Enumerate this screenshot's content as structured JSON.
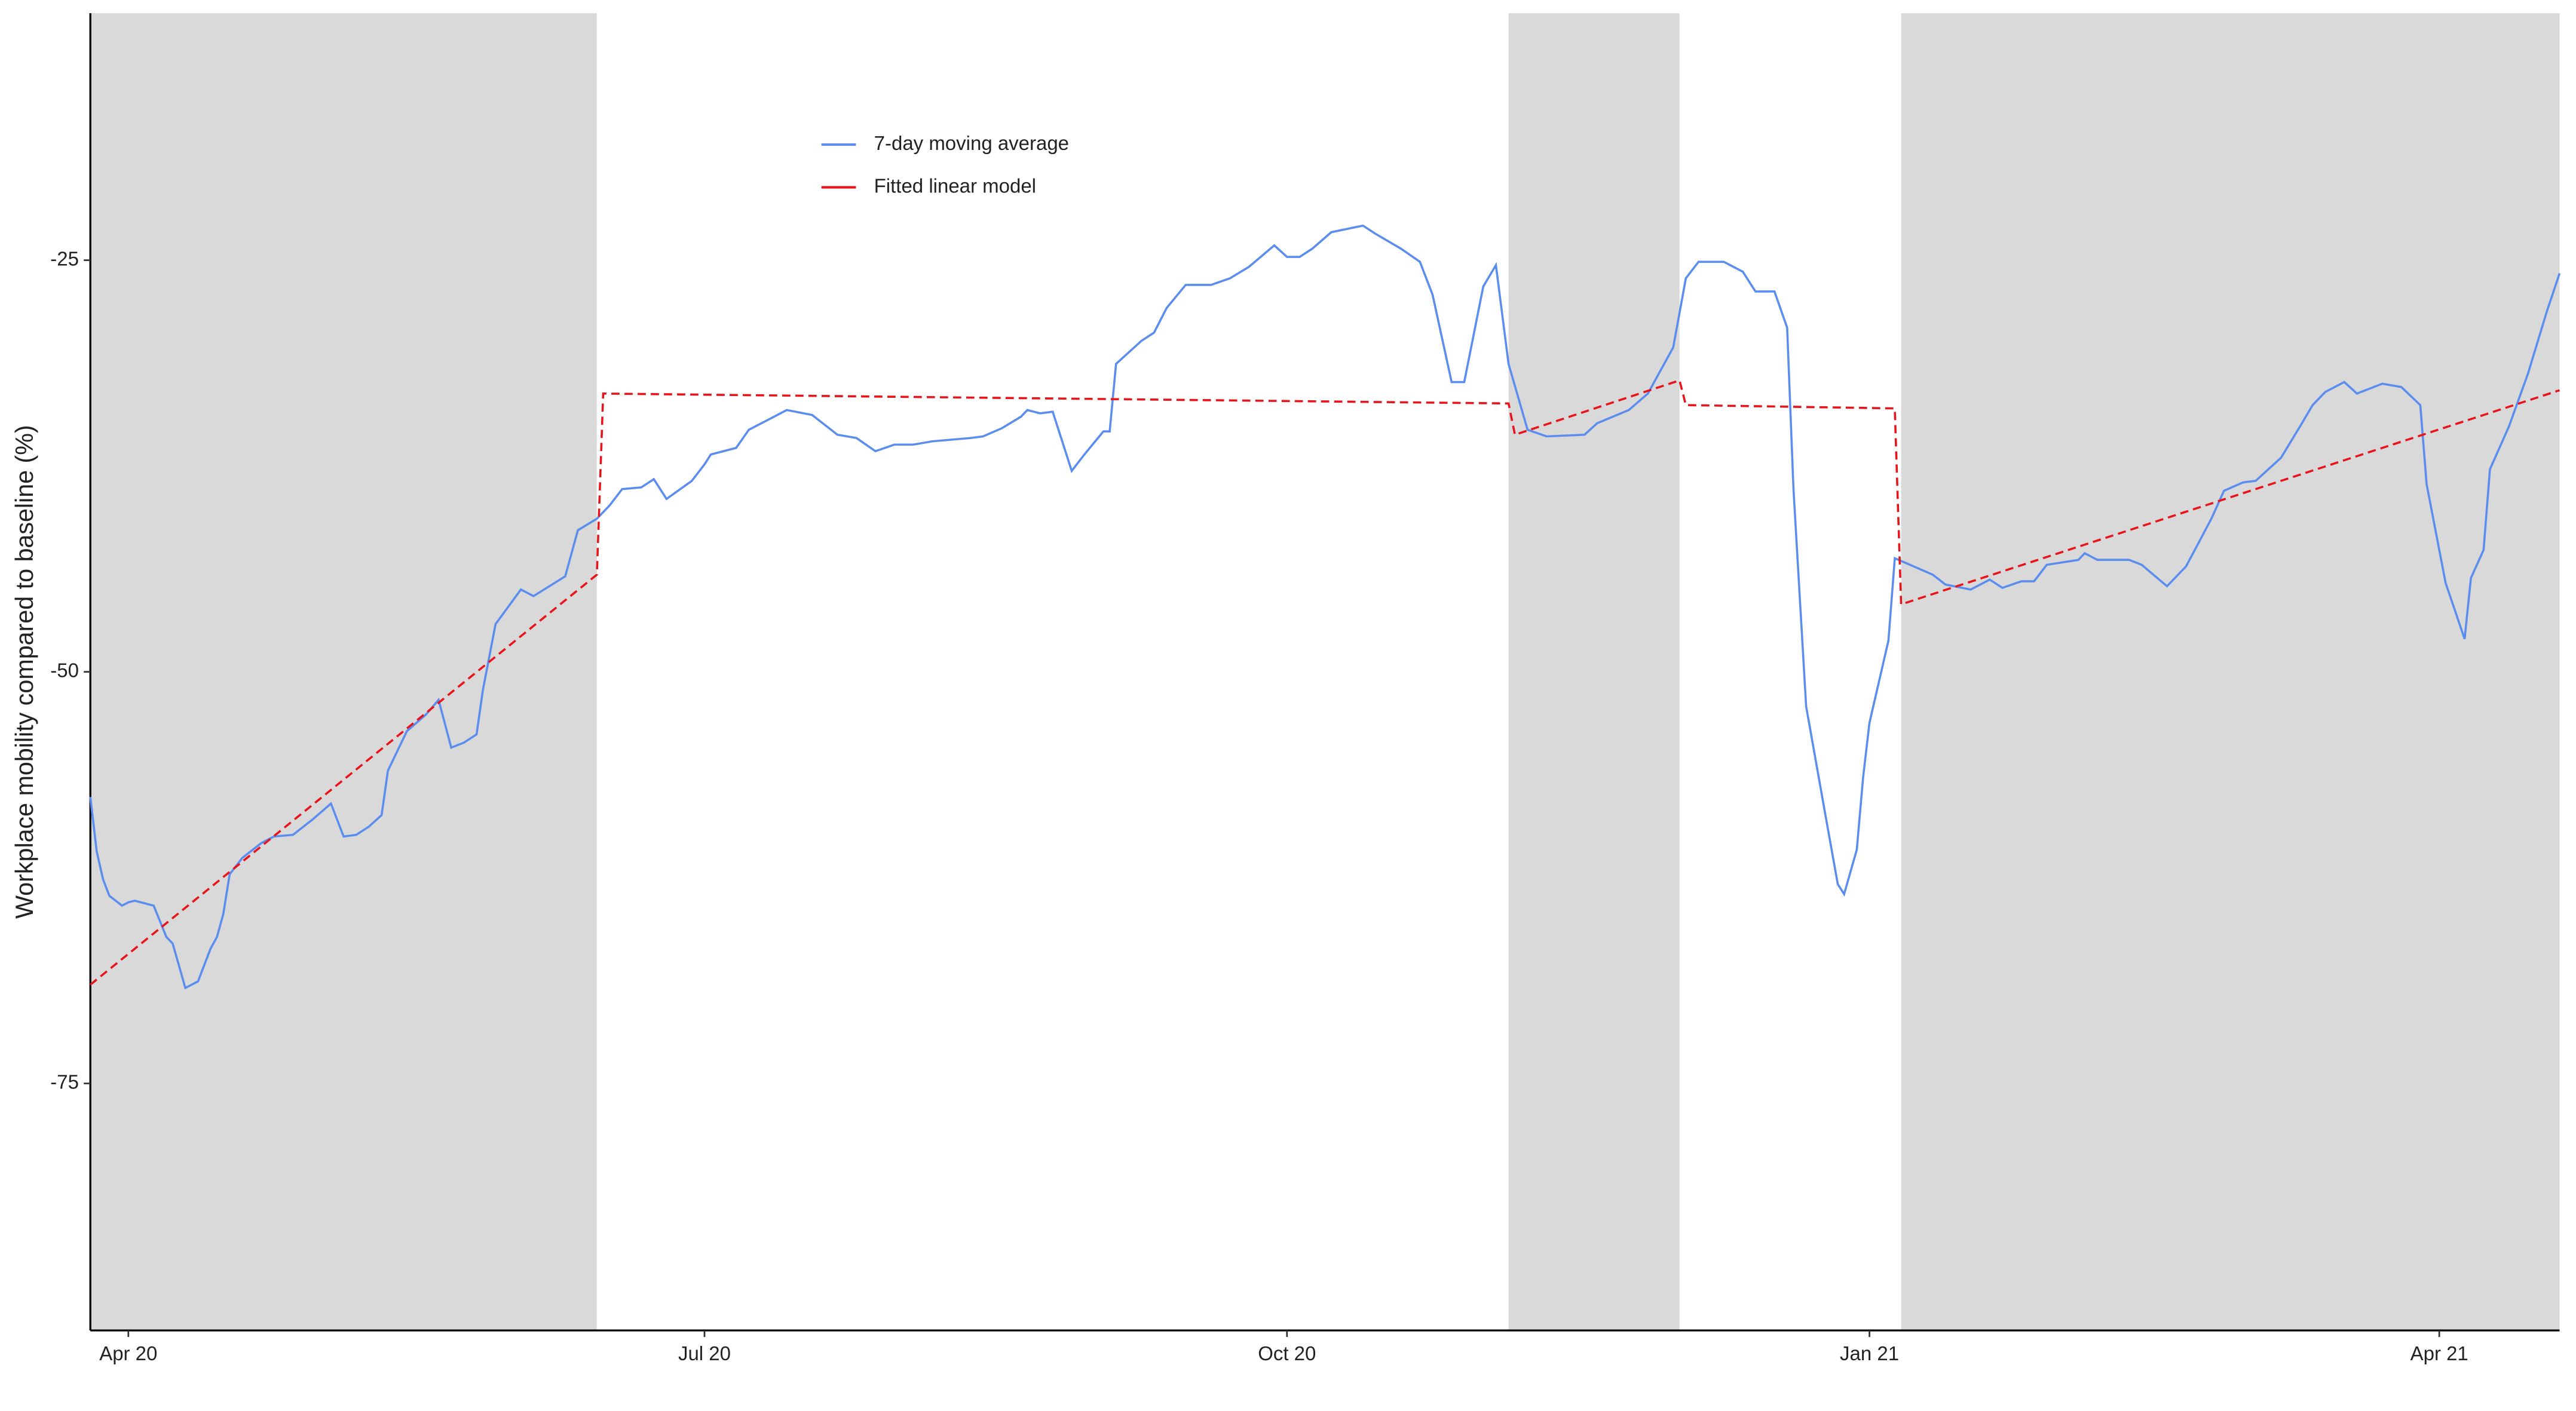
{
  "chart_data": {
    "type": "line",
    "y_label": "Workplace mobility compared to baseline (%)",
    "xlim": [
      "2020-03-26",
      "2021-04-20"
    ],
    "xticks": [
      {
        "value": "2020-04-01",
        "label": "Apr 20"
      },
      {
        "value": "2020-07-01",
        "label": "Jul 20"
      },
      {
        "value": "2020-10-01",
        "label": "Oct 20"
      },
      {
        "value": "2021-01-01",
        "label": "Jan 21"
      },
      {
        "value": "2021-04-01",
        "label": "Apr 21"
      }
    ],
    "ylim": [
      -90,
      -10
    ],
    "yticks": [
      -75,
      -50,
      -25
    ],
    "grid": false,
    "legend": "top",
    "shaded_periods": [
      [
        "2020-03-26",
        "2020-06-14"
      ],
      [
        "2020-11-05",
        "2020-12-02"
      ],
      [
        "2021-01-06",
        "2021-04-20"
      ]
    ],
    "shade_color": "#d9d9d9",
    "series": [
      {
        "name": "7-day moving average",
        "color": "#5b8def",
        "dashed": false,
        "x": [
          "2020-03-26",
          "2020-03-27",
          "2020-03-28",
          "2020-03-29",
          "2020-03-31",
          "2020-04-01",
          "2020-04-02",
          "2020-04-05",
          "2020-04-07",
          "2020-04-08",
          "2020-04-10",
          "2020-04-12",
          "2020-04-14",
          "2020-04-15",
          "2020-04-16",
          "2020-04-17",
          "2020-04-19",
          "2020-04-22",
          "2020-04-24",
          "2020-04-27",
          "2020-04-30",
          "2020-05-03",
          "2020-05-05",
          "2020-05-07",
          "2020-05-09",
          "2020-05-11",
          "2020-05-12",
          "2020-05-15",
          "2020-05-18",
          "2020-05-20",
          "2020-05-22",
          "2020-05-24",
          "2020-05-26",
          "2020-05-27",
          "2020-05-29",
          "2020-06-02",
          "2020-06-04",
          "2020-06-09",
          "2020-06-11",
          "2020-06-14",
          "2020-06-16",
          "2020-06-18",
          "2020-06-21",
          "2020-06-23",
          "2020-06-25",
          "2020-06-29",
          "2020-07-01",
          "2020-07-02",
          "2020-07-06",
          "2020-07-08",
          "2020-07-12",
          "2020-07-14",
          "2020-07-18",
          "2020-07-22",
          "2020-07-25",
          "2020-07-28",
          "2020-07-31",
          "2020-08-03",
          "2020-08-06",
          "2020-08-12",
          "2020-08-14",
          "2020-08-17",
          "2020-08-20",
          "2020-08-21",
          "2020-08-23",
          "2020-08-25",
          "2020-08-28",
          "2020-08-30",
          "2020-09-02",
          "2020-09-03",
          "2020-09-04",
          "2020-09-08",
          "2020-09-10",
          "2020-09-12",
          "2020-09-15",
          "2020-09-19",
          "2020-09-22",
          "2020-09-25",
          "2020-09-29",
          "2020-10-01",
          "2020-10-03",
          "2020-10-05",
          "2020-10-08",
          "2020-10-13",
          "2020-10-15",
          "2020-10-19",
          "2020-10-22",
          "2020-10-24",
          "2020-10-27",
          "2020-10-29",
          "2020-11-01",
          "2020-11-03",
          "2020-11-05",
          "2020-11-08",
          "2020-11-11",
          "2020-11-17",
          "2020-11-19",
          "2020-11-24",
          "2020-11-27",
          "2020-12-01",
          "2020-12-03",
          "2020-12-05",
          "2020-12-09",
          "2020-12-12",
          "2020-12-14",
          "2020-12-17",
          "2020-12-19",
          "2020-12-20",
          "2020-12-22",
          "2020-12-25",
          "2020-12-27",
          "2020-12-28",
          "2020-12-30",
          "2020-12-31",
          "2021-01-01",
          "2021-01-04",
          "2021-01-05",
          "2021-01-08",
          "2021-01-11",
          "2021-01-13",
          "2021-01-17",
          "2021-01-20",
          "2021-01-22",
          "2021-01-25",
          "2021-01-27",
          "2021-01-29",
          "2021-02-03",
          "2021-02-04",
          "2021-02-06",
          "2021-02-11",
          "2021-02-13",
          "2021-02-17",
          "2021-02-20",
          "2021-02-24",
          "2021-02-26",
          "2021-03-01",
          "2021-03-03",
          "2021-03-07",
          "2021-03-10",
          "2021-03-12",
          "2021-03-14",
          "2021-03-17",
          "2021-03-19",
          "2021-03-23",
          "2021-03-26",
          "2021-03-29",
          "2021-03-30",
          "2021-04-02",
          "2021-04-05",
          "2021-04-06",
          "2021-04-08",
          "2021-04-09",
          "2021-04-12",
          "2021-04-15",
          "2021-04-18",
          "2021-04-20"
        ],
        "values": [
          -57.6,
          -60.9,
          -62.6,
          -63.6,
          -64.2,
          -64.0,
          -63.9,
          -64.2,
          -66.1,
          -66.5,
          -69.2,
          -68.8,
          -66.8,
          -66.1,
          -64.7,
          -62.3,
          -61.3,
          -60.4,
          -60.0,
          -59.9,
          -59.0,
          -58.0,
          -60.0,
          -59.9,
          -59.4,
          -58.7,
          -56.0,
          -53.6,
          -52.6,
          -51.7,
          -54.6,
          -54.3,
          -53.8,
          -51.1,
          -47.1,
          -45.0,
          -45.4,
          -44.2,
          -41.4,
          -40.7,
          -39.9,
          -38.9,
          -38.8,
          -38.3,
          -39.5,
          -38.4,
          -37.4,
          -36.8,
          -36.4,
          -35.3,
          -34.5,
          -34.1,
          -34.4,
          -35.6,
          -35.8,
          -36.6,
          -36.2,
          -36.2,
          -36.0,
          -35.8,
          -35.7,
          -35.2,
          -34.5,
          -34.1,
          -34.3,
          -34.2,
          -37.8,
          -36.8,
          -35.4,
          -35.4,
          -31.3,
          -29.9,
          -29.4,
          -27.9,
          -26.5,
          -26.5,
          -26.1,
          -25.4,
          -24.1,
          -24.8,
          -24.8,
          -24.3,
          -23.3,
          -22.9,
          -23.4,
          -24.3,
          -25.1,
          -27.1,
          -32.4,
          -32.4,
          -26.6,
          -25.3,
          -31.3,
          -35.3,
          -35.7,
          -35.6,
          -34.9,
          -34.1,
          -33.1,
          -30.3,
          -26.1,
          -25.1,
          -25.1,
          -25.7,
          -26.9,
          -26.9,
          -29.1,
          -38.9,
          -52.1,
          -58.6,
          -62.9,
          -63.5,
          -60.8,
          -56.4,
          -53.1,
          -48.1,
          -43.1,
          -43.6,
          -44.1,
          -44.7,
          -45.0,
          -44.4,
          -44.9,
          -44.5,
          -44.5,
          -43.5,
          -43.2,
          -42.8,
          -43.2,
          -43.2,
          -43.5,
          -44.8,
          -43.6,
          -40.7,
          -39.0,
          -38.5,
          -38.4,
          -37.0,
          -35.1,
          -33.8,
          -33.0,
          -32.4,
          -33.1,
          -32.5,
          -32.7,
          -33.8,
          -38.6,
          -44.6,
          -48.0,
          -44.3,
          -42.6,
          -37.7,
          -35.1,
          -31.9,
          -28.1,
          -25.8
        ]
      },
      {
        "name": "Fitted linear model",
        "color": "#e8141b",
        "dashed": true,
        "x": [
          "2020-03-26",
          "2020-06-14",
          "2020-06-15",
          "2020-11-05",
          "2020-11-06",
          "2020-12-02",
          "2020-12-03",
          "2021-01-05",
          "2021-01-06",
          "2021-04-20"
        ],
        "values": [
          -69.0,
          -44.1,
          -33.1,
          -33.7,
          -35.6,
          -32.3,
          -33.8,
          -34.0,
          -45.9,
          -32.9
        ]
      }
    ]
  }
}
